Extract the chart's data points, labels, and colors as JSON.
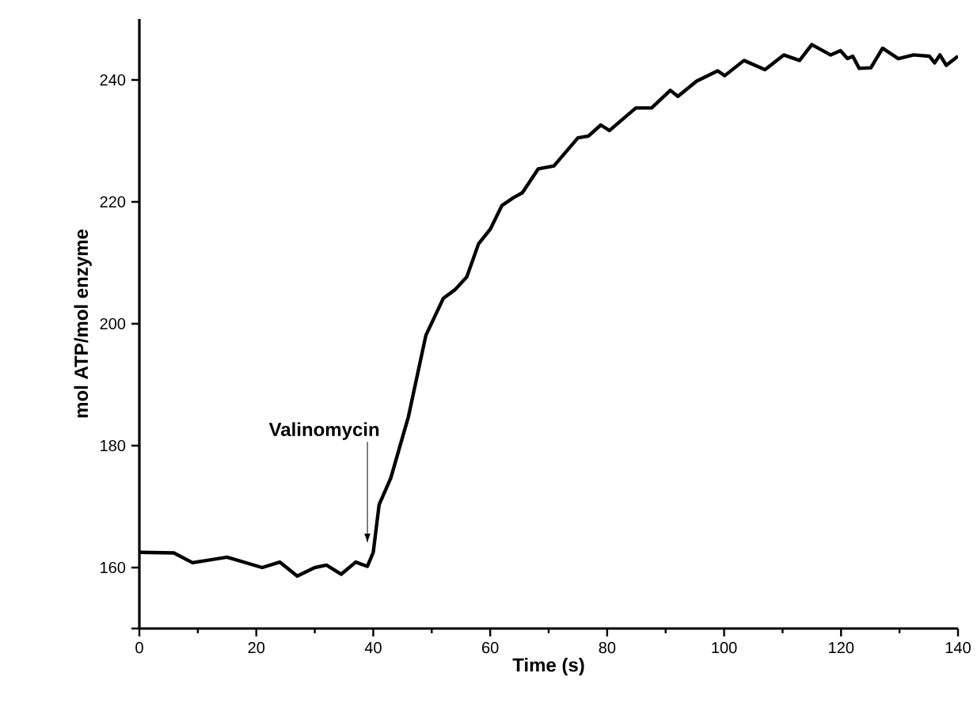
{
  "chart_data": {
    "type": "line",
    "xlabel": "Time (s)",
    "ylabel": "mol ATP/mol enzyme",
    "xlim": [
      0,
      140
    ],
    "ylim": [
      150,
      250
    ],
    "xticks": [
      0,
      20,
      40,
      60,
      80,
      100,
      120,
      140
    ],
    "yticks": [
      {
        "value": 150,
        "label": null
      },
      160,
      180,
      200,
      220,
      240
    ],
    "line_style": "solid",
    "annotations": [
      {
        "text": "Valinomycin",
        "x": 39,
        "y": 164
      }
    ],
    "series": [
      {
        "color": "#000000",
        "x": [
          0,
          5.9,
          9.1,
          15,
          21,
          24,
          27,
          30,
          32,
          34.5,
          37,
          39,
          40,
          41,
          43,
          46,
          49,
          52,
          54,
          56,
          58,
          60,
          62,
          64,
          65.5,
          68.2,
          70.9,
          75,
          76.8,
          78.9,
          80.4,
          84.9,
          87.6,
          90.8,
          92.1,
          95.3,
          98.9,
          100.1,
          103.4,
          107,
          110.2,
          112.9,
          115,
          118.2,
          119.9,
          121.1,
          122,
          123.1,
          125.1,
          127.1,
          129.8,
          132.4,
          135.1,
          136,
          136.9,
          138,
          140
        ],
        "values": [
          162.5,
          162.4,
          160.8,
          161.7,
          160,
          160.9,
          158.6,
          160,
          160.4,
          158.9,
          160.9,
          160.2,
          162.5,
          170.3,
          174.7,
          184.7,
          198.1,
          204.2,
          205.6,
          207.7,
          213.1,
          215.5,
          219.4,
          220.7,
          221.5,
          225.4,
          225.9,
          230.5,
          230.8,
          232.6,
          231.7,
          235.4,
          235.4,
          238.3,
          237.3,
          239.8,
          241.5,
          240.7,
          243.2,
          241.7,
          244.1,
          243.2,
          245.8,
          244.1,
          244.8,
          243.5,
          243.9,
          241.9,
          242,
          245.2,
          243.5,
          244.1,
          243.9,
          242.8,
          244.1,
          242.4,
          243.9
        ]
      }
    ]
  }
}
